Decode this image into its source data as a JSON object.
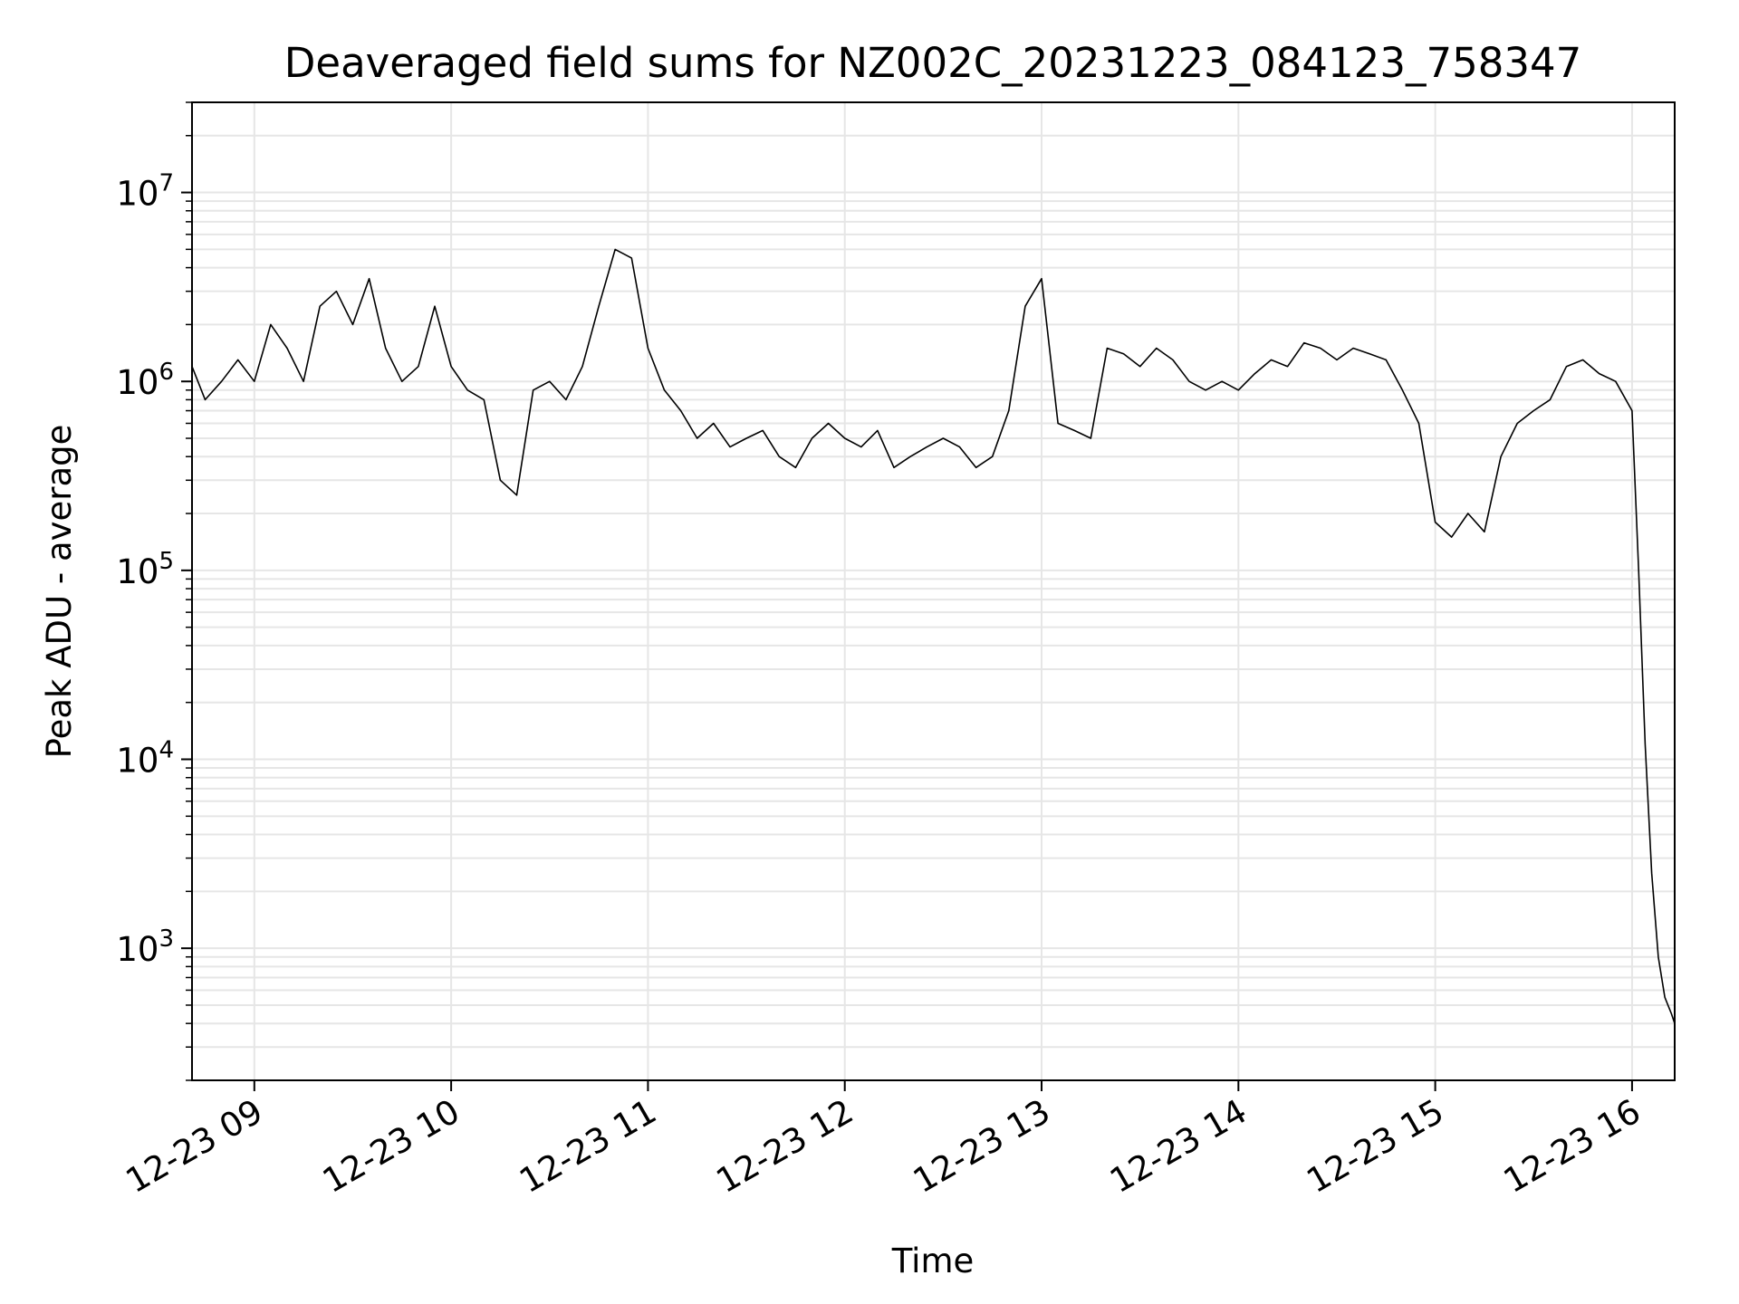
{
  "chart_data": {
    "type": "line",
    "title": "Deaveraged field sums for NZ002C_20231223_084123_758347",
    "xlabel": "Time",
    "ylabel": "Peak ADU - average",
    "yscale": "log",
    "grid": true,
    "xlim": [
      "2023-12-23T08:41",
      "2023-12-23T16:13"
    ],
    "ylim": [
      200,
      30000000
    ],
    "xticks": [
      {
        "value": "2023-12-23T09:00",
        "label": "12-23 09"
      },
      {
        "value": "2023-12-23T10:00",
        "label": "12-23 10"
      },
      {
        "value": "2023-12-23T11:00",
        "label": "12-23 11"
      },
      {
        "value": "2023-12-23T12:00",
        "label": "12-23 12"
      },
      {
        "value": "2023-12-23T13:00",
        "label": "12-23 13"
      },
      {
        "value": "2023-12-23T14:00",
        "label": "12-23 14"
      },
      {
        "value": "2023-12-23T15:00",
        "label": "12-23 15"
      },
      {
        "value": "2023-12-23T16:00",
        "label": "12-23 16"
      }
    ],
    "yticks": [
      {
        "value": 1000,
        "base": "10",
        "exp": "3"
      },
      {
        "value": 10000,
        "base": "10",
        "exp": "4"
      },
      {
        "value": 100000,
        "base": "10",
        "exp": "5"
      },
      {
        "value": 1000000,
        "base": "10",
        "exp": "6"
      },
      {
        "value": 10000000,
        "base": "10",
        "exp": "7"
      }
    ],
    "series": [
      {
        "color": "#000000",
        "x": [
          "2023-12-23T08:41",
          "2023-12-23T08:45",
          "2023-12-23T08:50",
          "2023-12-23T08:55",
          "2023-12-23T09:00",
          "2023-12-23T09:05",
          "2023-12-23T09:10",
          "2023-12-23T09:15",
          "2023-12-23T09:20",
          "2023-12-23T09:25",
          "2023-12-23T09:30",
          "2023-12-23T09:35",
          "2023-12-23T09:40",
          "2023-12-23T09:45",
          "2023-12-23T09:50",
          "2023-12-23T09:55",
          "2023-12-23T10:00",
          "2023-12-23T10:05",
          "2023-12-23T10:10",
          "2023-12-23T10:15",
          "2023-12-23T10:20",
          "2023-12-23T10:25",
          "2023-12-23T10:30",
          "2023-12-23T10:35",
          "2023-12-23T10:40",
          "2023-12-23T10:45",
          "2023-12-23T10:50",
          "2023-12-23T10:55",
          "2023-12-23T11:00",
          "2023-12-23T11:05",
          "2023-12-23T11:10",
          "2023-12-23T11:15",
          "2023-12-23T11:20",
          "2023-12-23T11:25",
          "2023-12-23T11:30",
          "2023-12-23T11:35",
          "2023-12-23T11:40",
          "2023-12-23T11:45",
          "2023-12-23T11:50",
          "2023-12-23T11:55",
          "2023-12-23T12:00",
          "2023-12-23T12:05",
          "2023-12-23T12:10",
          "2023-12-23T12:15",
          "2023-12-23T12:20",
          "2023-12-23T12:25",
          "2023-12-23T12:30",
          "2023-12-23T12:35",
          "2023-12-23T12:40",
          "2023-12-23T12:45",
          "2023-12-23T12:50",
          "2023-12-23T12:55",
          "2023-12-23T13:00",
          "2023-12-23T13:05",
          "2023-12-23T13:10",
          "2023-12-23T13:15",
          "2023-12-23T13:20",
          "2023-12-23T13:25",
          "2023-12-23T13:30",
          "2023-12-23T13:35",
          "2023-12-23T13:40",
          "2023-12-23T13:45",
          "2023-12-23T13:50",
          "2023-12-23T13:55",
          "2023-12-23T14:00",
          "2023-12-23T14:05",
          "2023-12-23T14:10",
          "2023-12-23T14:15",
          "2023-12-23T14:20",
          "2023-12-23T14:25",
          "2023-12-23T14:30",
          "2023-12-23T14:35",
          "2023-12-23T14:40",
          "2023-12-23T14:45",
          "2023-12-23T14:50",
          "2023-12-23T14:55",
          "2023-12-23T15:00",
          "2023-12-23T15:05",
          "2023-12-23T15:10",
          "2023-12-23T15:15",
          "2023-12-23T15:20",
          "2023-12-23T15:25",
          "2023-12-23T15:30",
          "2023-12-23T15:35",
          "2023-12-23T15:40",
          "2023-12-23T15:45",
          "2023-12-23T15:50",
          "2023-12-23T15:55",
          "2023-12-23T16:00",
          "2023-12-23T16:02",
          "2023-12-23T16:04",
          "2023-12-23T16:06",
          "2023-12-23T16:08",
          "2023-12-23T16:10",
          "2023-12-23T16:12",
          "2023-12-23T16:13"
        ],
        "y": [
          1200000,
          800000,
          1000000,
          1300000,
          1000000,
          2000000,
          1500000,
          1000000,
          2500000,
          3000000,
          2000000,
          3500000,
          1500000,
          1000000,
          1200000,
          2500000,
          1200000,
          900000,
          800000,
          300000,
          250000,
          900000,
          1000000,
          800000,
          1200000,
          2500000,
          5000000,
          4500000,
          1500000,
          900000,
          700000,
          500000,
          600000,
          450000,
          500000,
          550000,
          400000,
          350000,
          500000,
          600000,
          500000,
          450000,
          550000,
          350000,
          400000,
          450000,
          500000,
          450000,
          350000,
          400000,
          700000,
          2500000,
          3500000,
          600000,
          550000,
          500000,
          1500000,
          1400000,
          1200000,
          1500000,
          1300000,
          1000000,
          900000,
          1000000,
          900000,
          1100000,
          1300000,
          1200000,
          1600000,
          1500000,
          1300000,
          1500000,
          1400000,
          1300000,
          900000,
          600000,
          180000,
          150000,
          200000,
          160000,
          400000,
          600000,
          700000,
          800000,
          1200000,
          1300000,
          1100000,
          1000000,
          700000,
          100000,
          12000,
          2500,
          900,
          550,
          450,
          400
        ]
      }
    ]
  }
}
